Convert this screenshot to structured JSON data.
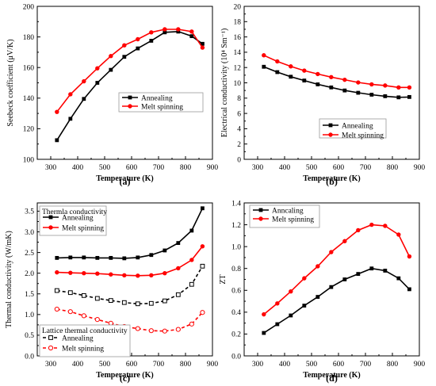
{
  "chart_data": [
    {
      "id": "a",
      "type": "line",
      "panel_label": "(a)",
      "xlabel": "Temperature (K)",
      "ylabel": "Seebeck coefficient (μV/K)",
      "xlim": [
        250,
        900
      ],
      "ylim": [
        100,
        200
      ],
      "xticks": [
        300,
        400,
        500,
        600,
        700,
        800,
        900
      ],
      "yticks": [
        100,
        120,
        140,
        160,
        180,
        200
      ],
      "legend": {
        "position": "lower-right",
        "title": ""
      },
      "series": [
        {
          "name": "Annealing",
          "color": "#000000",
          "marker": "square",
          "x": [
            323,
            373,
            423,
            473,
            523,
            573,
            623,
            673,
            723,
            773,
            823,
            863
          ],
          "y": [
            112.5,
            126.5,
            139.5,
            150,
            158.5,
            167,
            172.5,
            177.5,
            183,
            183.5,
            180.5,
            175.5
          ]
        },
        {
          "name": "Melt spinning",
          "color": "#ff0000",
          "marker": "circle",
          "x": [
            323,
            373,
            423,
            473,
            523,
            573,
            623,
            673,
            723,
            773,
            823,
            863
          ],
          "y": [
            131,
            142.5,
            151,
            159.5,
            167.5,
            174.5,
            178.5,
            183,
            185,
            185,
            183.5,
            173
          ]
        }
      ]
    },
    {
      "id": "b",
      "type": "line",
      "panel_label": "(b)",
      "xlabel": "Temperature (K)",
      "ylabel": "Electrical conductivity (10⁴ Sm⁻¹)",
      "xlim": [
        250,
        900
      ],
      "ylim": [
        0,
        20
      ],
      "xticks": [
        300,
        400,
        500,
        600,
        700,
        800,
        900
      ],
      "yticks": [
        0,
        2,
        4,
        6,
        8,
        10,
        12,
        14,
        16,
        18,
        20
      ],
      "legend": {
        "position": "center-right",
        "title": ""
      },
      "series": [
        {
          "name": "Annealing",
          "color": "#000000",
          "marker": "square",
          "x": [
            323,
            373,
            423,
            473,
            523,
            573,
            623,
            673,
            723,
            773,
            823,
            863
          ],
          "y": [
            12.1,
            11.4,
            10.8,
            10.3,
            9.8,
            9.4,
            9.0,
            8.7,
            8.45,
            8.25,
            8.1,
            8.15
          ]
        },
        {
          "name": "Melt spinning",
          "color": "#ff0000",
          "marker": "circle",
          "x": [
            323,
            373,
            423,
            473,
            523,
            573,
            623,
            673,
            723,
            773,
            823,
            863
          ],
          "y": [
            13.6,
            12.8,
            12.15,
            11.6,
            11.15,
            10.75,
            10.4,
            10.05,
            9.8,
            9.65,
            9.4,
            9.4
          ]
        }
      ]
    },
    {
      "id": "c",
      "type": "line",
      "panel_label": "(c)",
      "xlabel": "Temperature (K)",
      "ylabel": "Thermal conductivity (W/mK)",
      "xlim": [
        250,
        900
      ],
      "ylim": [
        0,
        3.7
      ],
      "xticks": [
        300,
        400,
        500,
        600,
        700,
        800,
        900
      ],
      "yticks": [
        0.0,
        0.5,
        1.0,
        1.5,
        2.0,
        2.5,
        3.0,
        3.5
      ],
      "legend": {
        "position": "top-left",
        "title": "Thermla conductivity"
      },
      "legend2": {
        "position": "bottom-left",
        "title": "Lattice thermal conductivity"
      },
      "series": [
        {
          "name": "Annealing",
          "color": "#000000",
          "marker": "square",
          "dash": false,
          "x": [
            323,
            373,
            423,
            473,
            523,
            573,
            623,
            673,
            723,
            773,
            823,
            863
          ],
          "y": [
            2.37,
            2.38,
            2.38,
            2.37,
            2.37,
            2.36,
            2.38,
            2.44,
            2.55,
            2.73,
            3.03,
            3.57
          ]
        },
        {
          "name": "Melt spinning",
          "color": "#ff0000",
          "marker": "circle",
          "dash": false,
          "x": [
            323,
            373,
            423,
            473,
            523,
            573,
            623,
            673,
            723,
            773,
            823,
            863
          ],
          "y": [
            2.02,
            2.01,
            2.0,
            1.99,
            1.97,
            1.95,
            1.94,
            1.95,
            2.0,
            2.12,
            2.32,
            2.65
          ]
        },
        {
          "name": "Annealing",
          "color": "#000000",
          "marker": "square-open",
          "dash": true,
          "group": 2,
          "x": [
            323,
            373,
            423,
            473,
            523,
            573,
            623,
            673,
            723,
            773,
            823,
            863
          ],
          "y": [
            1.58,
            1.53,
            1.46,
            1.39,
            1.34,
            1.29,
            1.26,
            1.27,
            1.33,
            1.48,
            1.73,
            2.17
          ]
        },
        {
          "name": "Melt spinning",
          "color": "#ff0000",
          "marker": "circle-open",
          "dash": true,
          "group": 2,
          "x": [
            323,
            373,
            423,
            473,
            523,
            573,
            623,
            673,
            723,
            773,
            823,
            863
          ],
          "y": [
            1.13,
            1.07,
            0.97,
            0.88,
            0.79,
            0.71,
            0.66,
            0.61,
            0.6,
            0.64,
            0.77,
            1.05
          ]
        }
      ]
    },
    {
      "id": "d",
      "type": "line",
      "panel_label": "(d)",
      "xlabel": "Temperature (K)",
      "ylabel": "ZT",
      "xlim": [
        250,
        900
      ],
      "ylim": [
        0,
        1.4
      ],
      "xticks": [
        300,
        400,
        500,
        600,
        700,
        800,
        900
      ],
      "yticks": [
        0.0,
        0.2,
        0.4,
        0.6,
        0.8,
        1.0,
        1.2,
        1.4
      ],
      "legend": {
        "position": "top-left",
        "title": ""
      },
      "series": [
        {
          "name": "Anncaling",
          "color": "#000000",
          "marker": "square",
          "x": [
            323,
            373,
            423,
            473,
            523,
            573,
            623,
            673,
            723,
            773,
            823,
            863
          ],
          "y": [
            0.21,
            0.29,
            0.37,
            0.46,
            0.54,
            0.63,
            0.7,
            0.75,
            0.8,
            0.78,
            0.71,
            0.61
          ]
        },
        {
          "name": "Melt spinning",
          "color": "#ff0000",
          "marker": "circle",
          "x": [
            323,
            373,
            423,
            473,
            523,
            573,
            623,
            673,
            723,
            773,
            823,
            863
          ],
          "y": [
            0.38,
            0.48,
            0.59,
            0.71,
            0.82,
            0.95,
            1.05,
            1.15,
            1.2,
            1.19,
            1.11,
            0.91
          ]
        }
      ]
    }
  ]
}
